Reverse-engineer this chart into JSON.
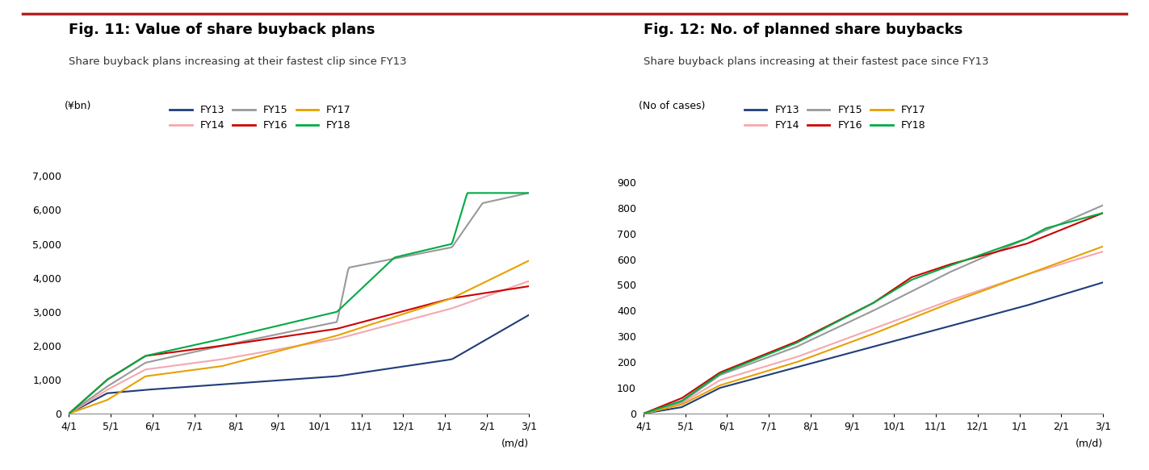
{
  "fig1_title": "Fig. 11: Value of share buyback plans",
  "fig1_subtitle": "Share buyback plans increasing at their fastest clip since FY13",
  "fig1_ylabel": "(¥bn)",
  "fig1_xlabel": "(m/d)",
  "fig1_yticks": [
    0,
    1000,
    2000,
    3000,
    4000,
    5000,
    6000,
    7000
  ],
  "fig1_ylim": [
    0,
    7200
  ],
  "fig2_title": "Fig. 12: No. of planned share buybacks",
  "fig2_subtitle": "Share buyback plans increasing at their fastest pace since FY13",
  "fig2_ylabel": "(No of cases)",
  "fig2_xlabel": "(m/d)",
  "fig2_yticks": [
    0,
    100,
    200,
    300,
    400,
    500,
    600,
    700,
    800,
    900
  ],
  "fig2_ylim": [
    0,
    950
  ],
  "xtick_labels": [
    "4/1",
    "5/1",
    "6/1",
    "7/1",
    "8/1",
    "9/1",
    "10/1",
    "11/1",
    "12/1",
    "1/1",
    "2/1",
    "3/1"
  ],
  "series_labels": [
    "FY13",
    "FY14",
    "FY15",
    "FY16",
    "FY17",
    "FY18"
  ],
  "series_colors": [
    "#1f3d7a",
    "#f4a8b0",
    "#999999",
    "#cc0000",
    "#e8a000",
    "#00aa44"
  ],
  "line_width": 1.5,
  "background_color": "#ffffff",
  "top_bar_color": "#b22222",
  "title_fontsize": 13,
  "subtitle_fontsize": 9.5,
  "tick_fontsize": 9,
  "legend_fontsize": 9,
  "ylabel_fontsize": 9
}
